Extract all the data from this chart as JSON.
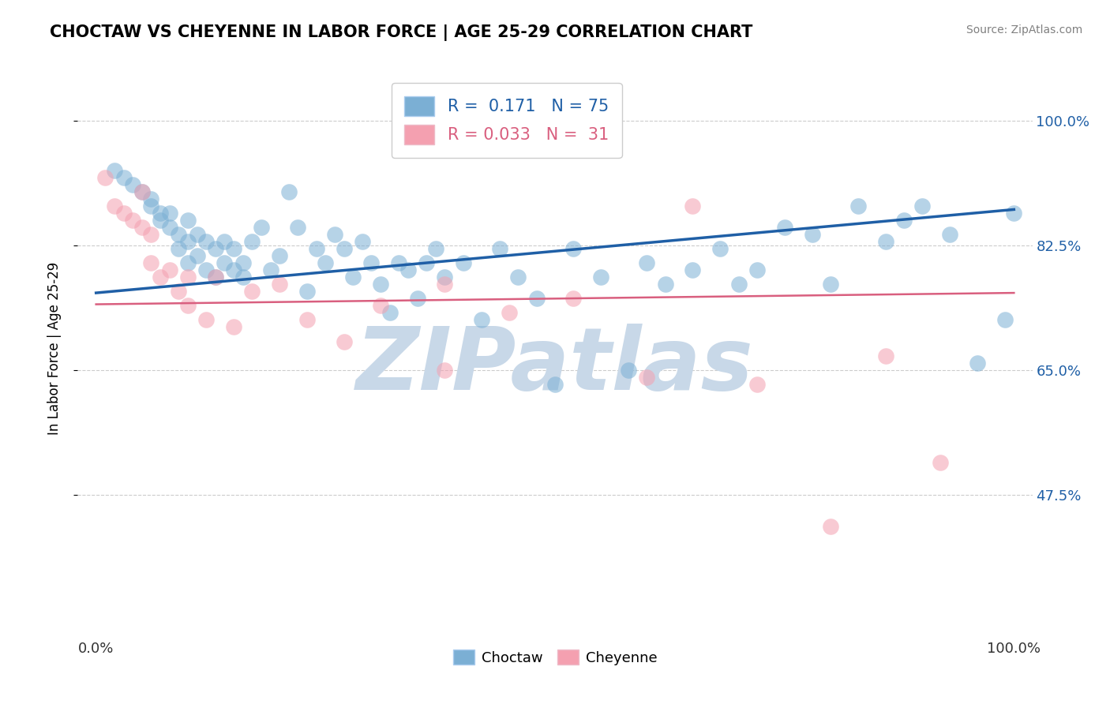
{
  "title": "CHOCTAW VS CHEYENNE IN LABOR FORCE | AGE 25-29 CORRELATION CHART",
  "source_text": "Source: ZipAtlas.com",
  "ylabel": "In Labor Force | Age 25-29",
  "xlim": [
    -0.02,
    1.02
  ],
  "ylim": [
    0.28,
    1.08
  ],
  "yticks": [
    0.475,
    0.65,
    0.825,
    1.0
  ],
  "ytick_labels": [
    "47.5%",
    "65.0%",
    "82.5%",
    "100.0%"
  ],
  "xtick_left": "0.0%",
  "xtick_right": "100.0%",
  "blue_R": 0.171,
  "blue_N": 75,
  "pink_R": 0.033,
  "pink_N": 31,
  "blue_color": "#7bafd4",
  "pink_color": "#f4a0b0",
  "blue_line_color": "#1f5fa6",
  "pink_line_color": "#d95f7f",
  "grid_color": "#cccccc",
  "watermark_color": "#c8d8e8",
  "legend_label_blue": "Choctaw",
  "legend_label_pink": "Cheyenne",
  "blue_scatter_x": [
    0.02,
    0.03,
    0.04,
    0.05,
    0.06,
    0.06,
    0.07,
    0.07,
    0.08,
    0.08,
    0.09,
    0.09,
    0.1,
    0.1,
    0.1,
    0.11,
    0.11,
    0.12,
    0.12,
    0.13,
    0.13,
    0.14,
    0.14,
    0.15,
    0.15,
    0.16,
    0.16,
    0.17,
    0.18,
    0.19,
    0.2,
    0.21,
    0.22,
    0.23,
    0.24,
    0.25,
    0.26,
    0.27,
    0.28,
    0.29,
    0.3,
    0.31,
    0.32,
    0.33,
    0.34,
    0.35,
    0.36,
    0.37,
    0.38,
    0.4,
    0.42,
    0.44,
    0.46,
    0.48,
    0.5,
    0.52,
    0.55,
    0.58,
    0.6,
    0.62,
    0.65,
    0.68,
    0.7,
    0.72,
    0.75,
    0.78,
    0.8,
    0.83,
    0.86,
    0.88,
    0.9,
    0.93,
    0.96,
    0.99,
    1.0
  ],
  "blue_scatter_y": [
    0.93,
    0.92,
    0.91,
    0.9,
    0.89,
    0.88,
    0.87,
    0.86,
    0.87,
    0.85,
    0.84,
    0.82,
    0.86,
    0.83,
    0.8,
    0.84,
    0.81,
    0.83,
    0.79,
    0.82,
    0.78,
    0.83,
    0.8,
    0.82,
    0.79,
    0.8,
    0.78,
    0.83,
    0.85,
    0.79,
    0.81,
    0.9,
    0.85,
    0.76,
    0.82,
    0.8,
    0.84,
    0.82,
    0.78,
    0.83,
    0.8,
    0.77,
    0.73,
    0.8,
    0.79,
    0.75,
    0.8,
    0.82,
    0.78,
    0.8,
    0.72,
    0.82,
    0.78,
    0.75,
    0.63,
    0.82,
    0.78,
    0.65,
    0.8,
    0.77,
    0.79,
    0.82,
    0.77,
    0.79,
    0.85,
    0.84,
    0.77,
    0.88,
    0.83,
    0.86,
    0.88,
    0.84,
    0.66,
    0.72,
    0.87
  ],
  "pink_scatter_x": [
    0.01,
    0.02,
    0.03,
    0.04,
    0.05,
    0.05,
    0.06,
    0.06,
    0.07,
    0.08,
    0.09,
    0.1,
    0.1,
    0.12,
    0.13,
    0.15,
    0.17,
    0.2,
    0.23,
    0.27,
    0.31,
    0.38,
    0.38,
    0.45,
    0.52,
    0.6,
    0.65,
    0.72,
    0.8,
    0.86,
    0.92
  ],
  "pink_scatter_y": [
    0.92,
    0.88,
    0.87,
    0.86,
    0.9,
    0.85,
    0.84,
    0.8,
    0.78,
    0.79,
    0.76,
    0.78,
    0.74,
    0.72,
    0.78,
    0.71,
    0.76,
    0.77,
    0.72,
    0.69,
    0.74,
    0.65,
    0.77,
    0.73,
    0.75,
    0.64,
    0.88,
    0.63,
    0.43,
    0.67,
    0.52
  ],
  "blue_line_x": [
    0.0,
    1.0
  ],
  "blue_line_y": [
    0.758,
    0.875
  ],
  "pink_line_x": [
    0.0,
    1.0
  ],
  "pink_line_y": [
    0.742,
    0.758
  ]
}
